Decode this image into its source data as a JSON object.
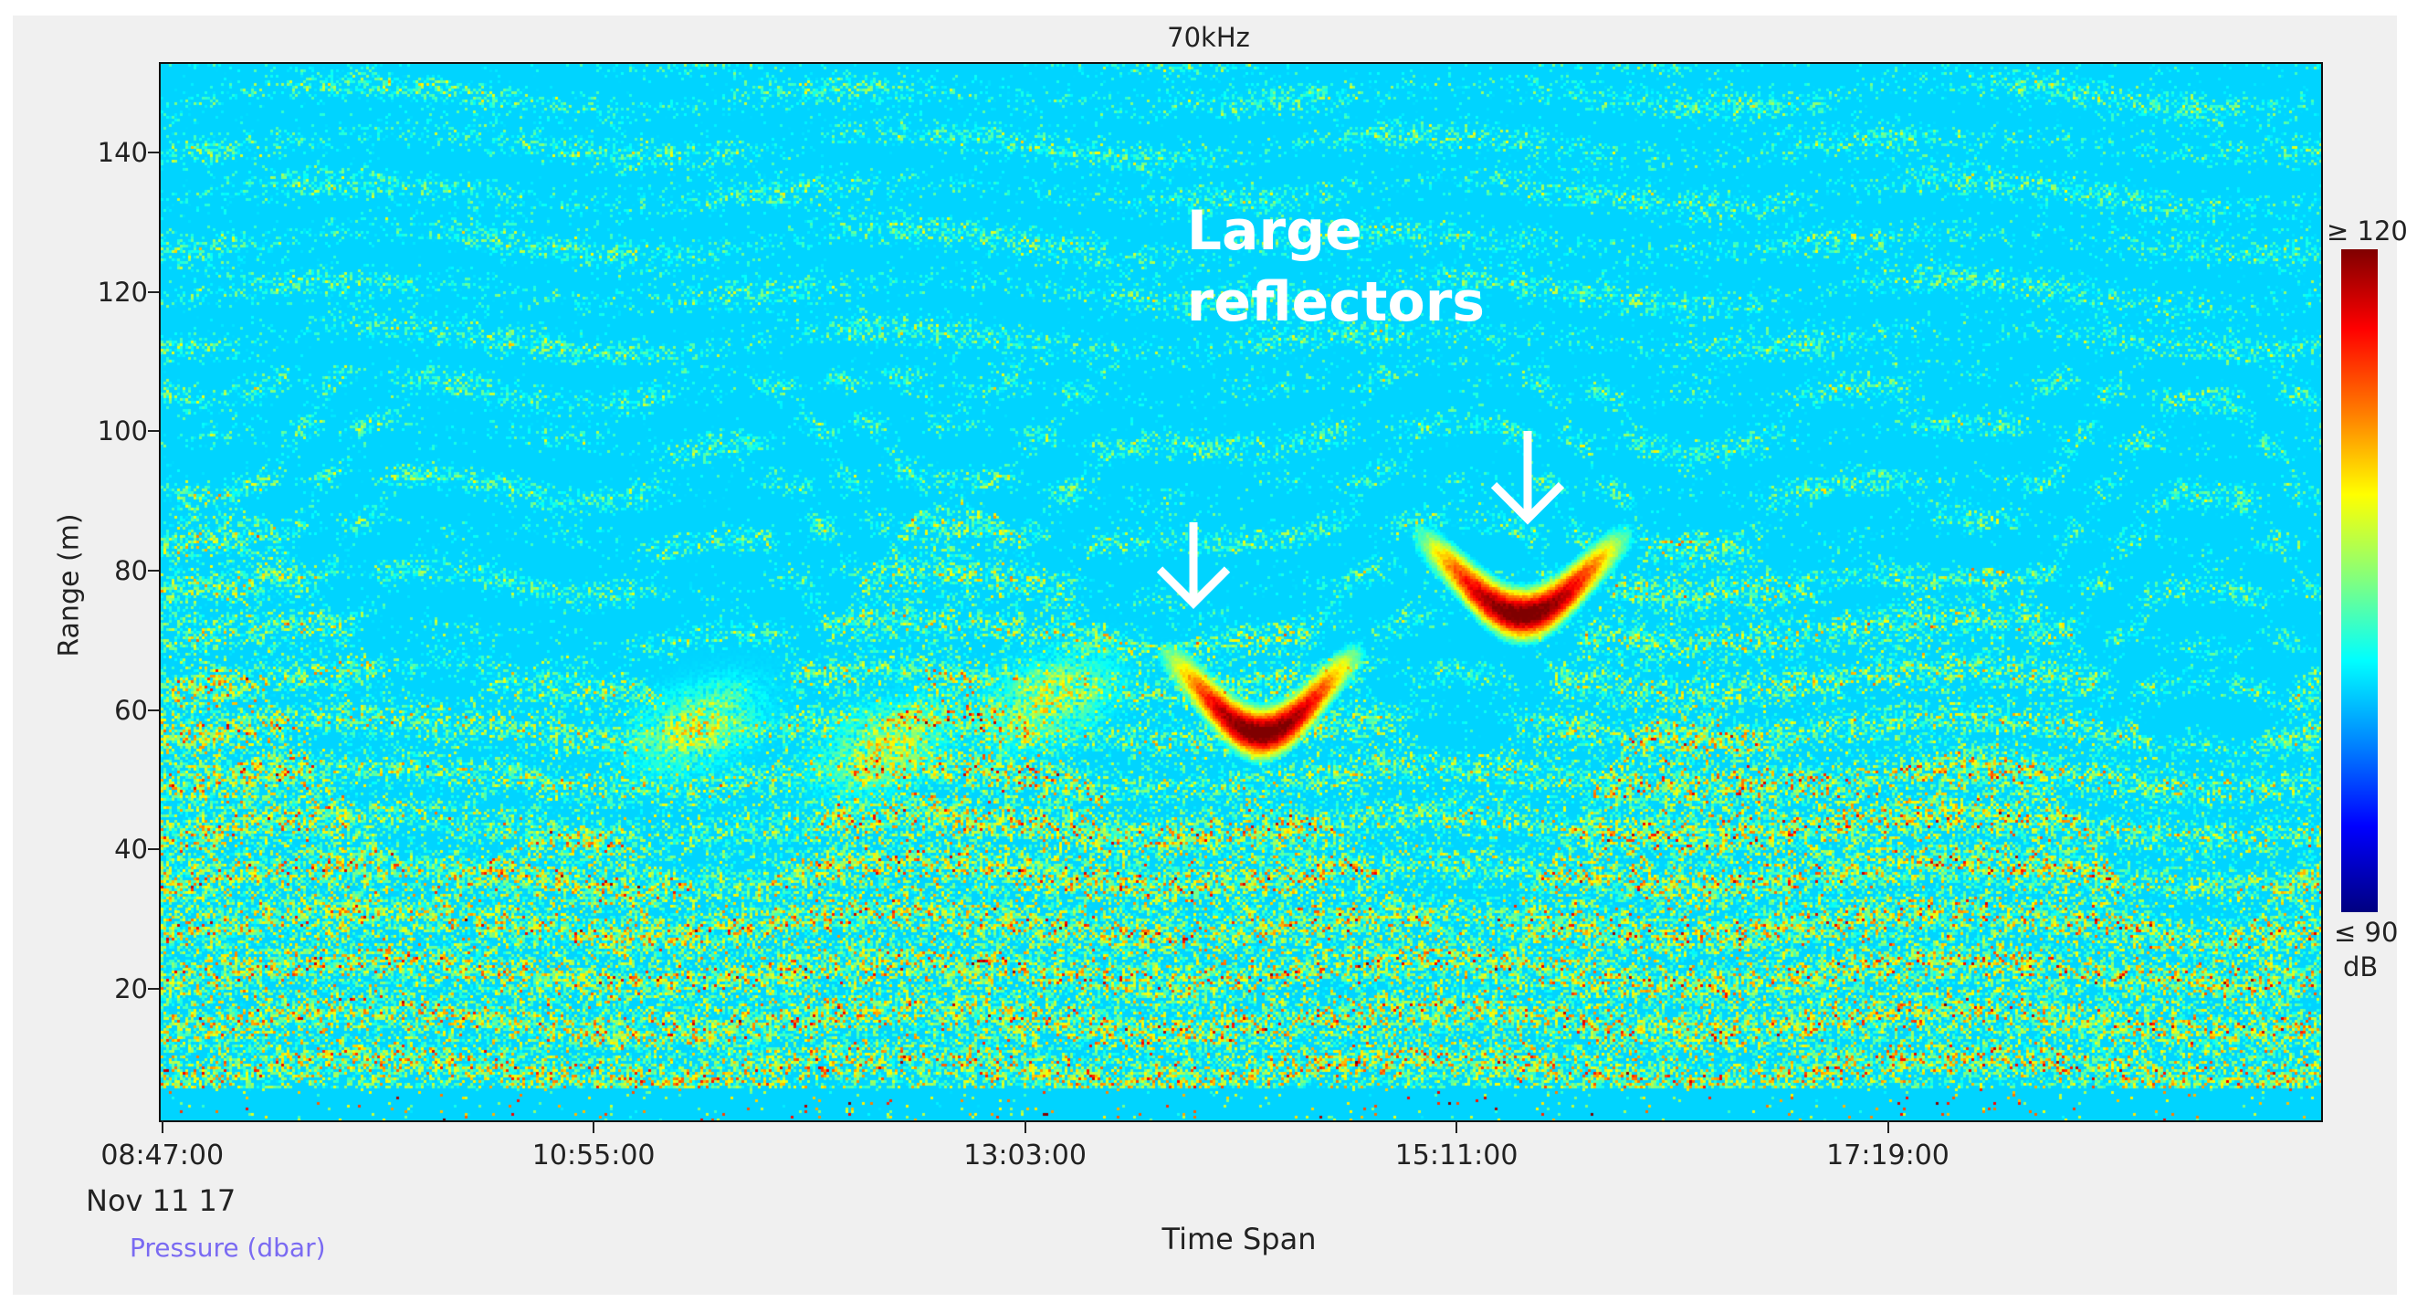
{
  "chart_data": {
    "type": "heatmap",
    "title": "70kHz",
    "xlabel": "Time Span",
    "ylabel": "Range (m)",
    "x_date_label": "Nov 11 17",
    "secondary_label": "Pressure (dbar)",
    "xlim": [
      "08:46:00",
      "19:27:00"
    ],
    "ylim": [
      1.4,
      153
    ],
    "x_ticks": [
      "08:47:00",
      "10:55:00",
      "13:03:00",
      "15:11:00",
      "17:19:00"
    ],
    "y_ticks": [
      20,
      40,
      60,
      80,
      100,
      120,
      140
    ],
    "colorbar": {
      "min_label": "≤ 90",
      "max_label": "≥ 120",
      "unit": "dB",
      "min": 90,
      "max": 120,
      "colormap": "jet"
    },
    "grid": false,
    "annotations": [
      {
        "text": "Large reflectors",
        "time": "13:51:00",
        "range": 130
      },
      {
        "type": "arrow",
        "time": "13:53:00",
        "range_from": 87,
        "range_to": 75
      },
      {
        "type": "arrow",
        "time": "15:32:00",
        "range_from": 100,
        "range_to": 87
      }
    ],
    "features": [
      {
        "name": "strong reflector",
        "time_start": "13:45:00",
        "time_end": "14:40:00",
        "range_center": 63,
        "level_db": 120
      },
      {
        "name": "strong reflector",
        "time_start": "15:00:00",
        "time_end": "16:00:00",
        "range_center": 80,
        "level_db": 120
      }
    ]
  }
}
